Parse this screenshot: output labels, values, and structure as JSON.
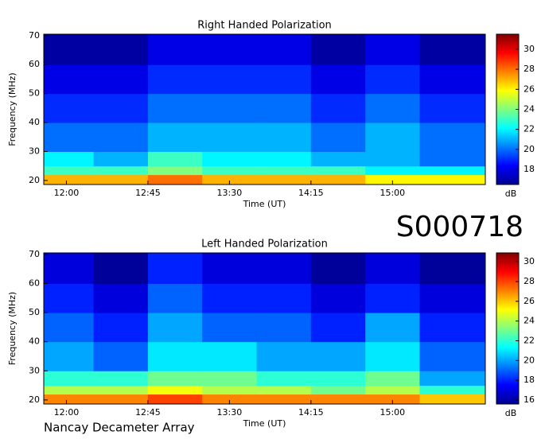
{
  "chart_data": [
    {
      "type": "heatmap",
      "title": "Right Handed Polarization",
      "xlabel": "Time (UT)",
      "ylabel": "Frequency (MHz)",
      "xlim": [
        707.5,
        951.25
      ],
      "ylim": [
        18.6,
        70.5
      ],
      "xticks": [
        {
          "value": 720,
          "label": "12:00"
        },
        {
          "value": 765,
          "label": "12:45"
        },
        {
          "value": 810,
          "label": "13:30"
        },
        {
          "value": 855,
          "label": "14:15"
        },
        {
          "value": 900,
          "label": "15:00"
        }
      ],
      "yticks": [
        20,
        30,
        40,
        50,
        60,
        70
      ],
      "xbins": [
        707.5,
        735,
        765,
        795,
        825,
        855,
        885,
        915,
        951.25
      ],
      "ybins": [
        18.6,
        22,
        25,
        30,
        40,
        50,
        60,
        70.5
      ],
      "values": [
        [
          27,
          27,
          28,
          27,
          27,
          27,
          26,
          26
        ],
        [
          23,
          23,
          24,
          23,
          23,
          23,
          22,
          22
        ],
        [
          22,
          21,
          23,
          22,
          22,
          21,
          21,
          20
        ],
        [
          20,
          20,
          21,
          21,
          21,
          20,
          21,
          20
        ],
        [
          19,
          19,
          20,
          20,
          20,
          19,
          20,
          19
        ],
        [
          18,
          18,
          19,
          19,
          19,
          18,
          19,
          18
        ],
        [
          17,
          17,
          18,
          18,
          18,
          17,
          18,
          17
        ]
      ],
      "colorbar": {
        "label": "dB",
        "colormap": "jet",
        "clim": [
          16.5,
          31.5
        ],
        "ticks": [
          18,
          20,
          22,
          24,
          26,
          28,
          30
        ]
      }
    },
    {
      "type": "heatmap",
      "title": "Left Handed Polarization",
      "xlabel": "Time (UT)",
      "ylabel": "Frequency (MHz)",
      "xlim": [
        707.5,
        951.25
      ],
      "ylim": [
        18.6,
        70.5
      ],
      "xticks": [
        {
          "value": 720,
          "label": "12:00"
        },
        {
          "value": 765,
          "label": "12:45"
        },
        {
          "value": 810,
          "label": "13:30"
        },
        {
          "value": 855,
          "label": "14:15"
        },
        {
          "value": 900,
          "label": "15:00"
        }
      ],
      "yticks": [
        20,
        30,
        40,
        50,
        60,
        70
      ],
      "xbins": [
        707.5,
        735,
        765,
        795,
        825,
        855,
        885,
        915,
        951.25
      ],
      "ybins": [
        18.6,
        22,
        25,
        30,
        40,
        50,
        60,
        70.5
      ],
      "values": [
        [
          27,
          27,
          28,
          27,
          27,
          27,
          27,
          26
        ],
        [
          24,
          24,
          25,
          24,
          24,
          23,
          24,
          22
        ],
        [
          22,
          22,
          23,
          23,
          22,
          22,
          23,
          20
        ],
        [
          20,
          19,
          21,
          21,
          20,
          20,
          21,
          19
        ],
        [
          19,
          18,
          20,
          19,
          19,
          18,
          20,
          18
        ],
        [
          18,
          17,
          19,
          18,
          18,
          17,
          18,
          17
        ],
        [
          17,
          16,
          18,
          17,
          17,
          16,
          17,
          16
        ]
      ],
      "colorbar": {
        "label": "dB",
        "colormap": "jet",
        "clim": [
          15.6,
          30.9
        ],
        "ticks": [
          16,
          18,
          20,
          22,
          24,
          26,
          28,
          30
        ]
      }
    }
  ],
  "label": "S000718",
  "footer": "Nancay Decameter Array"
}
